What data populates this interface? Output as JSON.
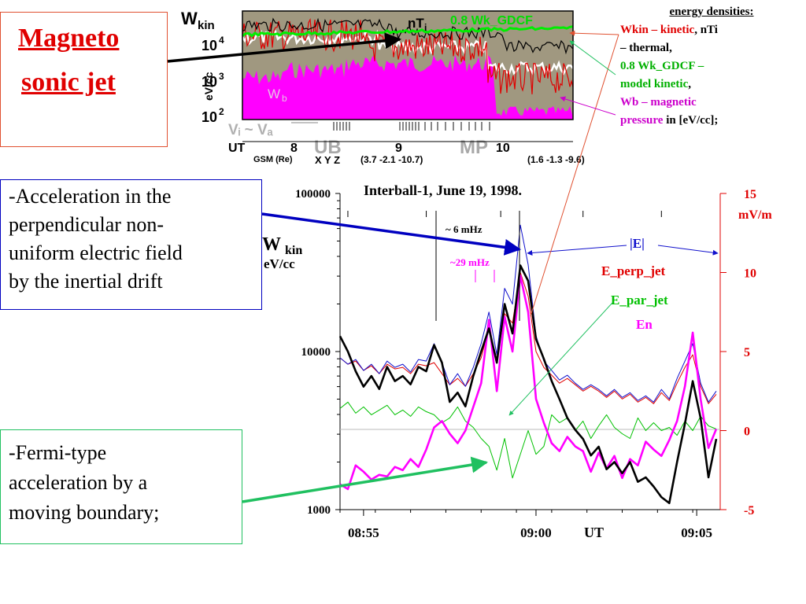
{
  "callouts": {
    "magneto_line1": "Magneto",
    "magneto_line2": "sonic jet",
    "accel_lines": [
      "-Acceleration in the",
      "perpendicular non-",
      "uniform electric field",
      "by the inertial drift"
    ],
    "fermi_lines": [
      "-Fermi-type",
      "acceleration by a",
      "moving boundary;"
    ]
  },
  "legend": {
    "heading": "energy densities:",
    "wkin_label": "Wkin – kinetic",
    "nti_sep": ", nTi",
    "thermal": "– thermal,",
    "gdcf_line1": "0.8 Wk_GDCF –",
    "gdcf_line2": "model kinetic",
    "gdcf_comma": ",",
    "wb_line1": "Wb – magnetic",
    "wb_line2": "pressure",
    "wb_unit": " in [eV/cc];"
  },
  "colors": {
    "kinetic": "#e00000",
    "model": "#00c000",
    "magnetic": "#ff00ff",
    "thermal": "#000000",
    "box_red": "#e05030",
    "box_blue": "#0000c0",
    "box_green": "#20c060",
    "field": "#1010cc"
  },
  "chart_data": [
    {
      "type": "area",
      "y_label": "eV/cc",
      "y_title_main": "W",
      "y_title_sub": "kin",
      "y_scale": "log",
      "y_ticks": [
        {
          "base": "10",
          "exp": "4"
        },
        {
          "base": "10",
          "exp": "3"
        },
        {
          "base": "10",
          "exp": "2"
        }
      ],
      "series_labels": {
        "nti": "nT",
        "nti_sub": "i",
        "gdcf": "0.8 Wk_GDCF",
        "wb": "W",
        "wb_sub": "b"
      },
      "region_label": "Vᵢ ~ Vₐ",
      "ub_label": "UB",
      "mp_label": "MP",
      "ut_axis": {
        "ut_label": "UT",
        "ticks": [
          "8",
          "9",
          "10"
        ]
      },
      "gsm": {
        "label": "GSM (Re)",
        "xyz": "X Y Z",
        "pos1": "(3.7  -2.1  -10.7)",
        "pos2": "(1.6  -1.3  -9.6)"
      }
    },
    {
      "type": "line",
      "title": "Interball-1, June 19, 1998.",
      "ylabel_main": "W",
      "ylabel_sub": "kin",
      "ylabel_unit": "eV/cc",
      "y_scale": "log",
      "ylim": [
        1000,
        100000
      ],
      "y_ticks": [
        "100000",
        "10000",
        "1000"
      ],
      "y2label": "mV/m",
      "y2lim": [
        -5,
        15
      ],
      "y2_ticks": [
        "15",
        "10",
        "5",
        "0",
        "-5"
      ],
      "xlim": [
        0,
        97
      ],
      "x_ticks": [
        {
          "x": 6,
          "label": "08:55"
        },
        {
          "x": 50,
          "label": "09:00"
        },
        {
          "x": 91,
          "label": "09:05"
        }
      ],
      "xlabel": "UT",
      "annotations": {
        "mhz6": "~  6 mHz",
        "mhz29": "~29 mHz",
        "absE": "|E|",
        "eperp": "E_perp_jet",
        "epar": "E_par_jet",
        "en": "En"
      },
      "series": [
        {
          "name": "W_kin",
          "axis": "left",
          "color": "#000000",
          "x": [
            0,
            2,
            4,
            6,
            8,
            10,
            12,
            14,
            16,
            18,
            20,
            22,
            24,
            26,
            28,
            30,
            32,
            34,
            36,
            38,
            40,
            42,
            44,
            46,
            48,
            50,
            52,
            54,
            56,
            58,
            60,
            62,
            64,
            66,
            68,
            70,
            72,
            74,
            76,
            78,
            80,
            82,
            84,
            86,
            88,
            90,
            92,
            94,
            96
          ],
          "y": [
            12500,
            10000,
            7500,
            6000,
            7000,
            5800,
            8000,
            6500,
            7000,
            6200,
            8000,
            7500,
            11000,
            8500,
            4800,
            5500,
            4500,
            7000,
            10000,
            14000,
            8500,
            20000,
            13000,
            35000,
            28000,
            12000,
            9000,
            6500,
            5000,
            3800,
            3200,
            2800,
            2200,
            2500,
            1800,
            2000,
            1700,
            2000,
            1500,
            1600,
            1400,
            1200,
            1100,
            2000,
            3500,
            6500,
            3800,
            1600,
            2800
          ]
        },
        {
          "name": "|E|",
          "axis": "right",
          "color": "#1010cc",
          "x": [
            0,
            2,
            4,
            6,
            8,
            10,
            12,
            14,
            16,
            18,
            20,
            22,
            24,
            26,
            28,
            30,
            32,
            34,
            36,
            38,
            40,
            42,
            44,
            46,
            48,
            50,
            52,
            54,
            56,
            58,
            60,
            62,
            64,
            66,
            68,
            70,
            72,
            74,
            76,
            78,
            80,
            82,
            84,
            86,
            88,
            90,
            92,
            94,
            96
          ],
          "y": [
            4.6,
            4.2,
            4.5,
            3.8,
            4.2,
            3.6,
            4.4,
            4.0,
            4.2,
            3.7,
            4.5,
            4.4,
            5.5,
            4.3,
            2.9,
            3.6,
            2.8,
            4.0,
            5.5,
            7.5,
            4.8,
            9.0,
            8.0,
            13.0,
            10.5,
            6.0,
            4.4,
            3.8,
            3.2,
            3.5,
            3.0,
            2.6,
            2.9,
            2.6,
            2.2,
            2.6,
            2.1,
            2.4,
            1.9,
            2.2,
            1.8,
            2.6,
            2.0,
            3.3,
            4.4,
            5.5,
            3.0,
            1.8,
            2.5
          ]
        },
        {
          "name": "E_perp_jet",
          "axis": "right",
          "color": "#e00000",
          "x": [
            0,
            2,
            4,
            6,
            8,
            10,
            12,
            14,
            16,
            18,
            20,
            22,
            24,
            26,
            28,
            30,
            32,
            34,
            36,
            38,
            40,
            42,
            44,
            46,
            48,
            50,
            52,
            54,
            56,
            58,
            60,
            62,
            64,
            66,
            68,
            70,
            72,
            74,
            76,
            78,
            80,
            82,
            84,
            86,
            88,
            90,
            92,
            94,
            96
          ],
          "y": [
            4.6,
            4.2,
            4.4,
            3.8,
            4.1,
            3.6,
            4.2,
            3.9,
            4.0,
            3.6,
            4.2,
            4.1,
            4.3,
            3.6,
            2.9,
            3.3,
            2.8,
            3.6,
            4.6,
            6.5,
            4.5,
            7.4,
            6.8,
            10.0,
            8.5,
            5.0,
            4.0,
            3.5,
            3.0,
            3.3,
            2.9,
            2.5,
            2.8,
            2.5,
            2.1,
            2.5,
            2.0,
            2.3,
            1.8,
            2.1,
            1.7,
            2.4,
            1.9,
            3.0,
            4.0,
            4.8,
            2.8,
            1.7,
            2.3
          ]
        },
        {
          "name": "E_par_jet",
          "axis": "right",
          "color": "#00c000",
          "x": [
            0,
            2,
            4,
            6,
            8,
            10,
            12,
            14,
            16,
            18,
            20,
            22,
            24,
            26,
            28,
            30,
            32,
            34,
            36,
            38,
            40,
            42,
            44,
            46,
            48,
            50,
            52,
            54,
            56,
            58,
            60,
            62,
            64,
            66,
            68,
            70,
            72,
            74,
            76,
            78,
            80,
            82,
            84,
            86,
            88,
            90,
            92,
            94,
            96
          ],
          "y": [
            1.4,
            1.8,
            1.1,
            1.5,
            1.0,
            1.3,
            1.6,
            1.0,
            1.3,
            0.9,
            1.5,
            1.2,
            1.0,
            0.5,
            0.8,
            1.5,
            0.6,
            0.2,
            -0.5,
            -1.0,
            -2.5,
            -0.5,
            -3.0,
            -1.5,
            0.0,
            -1.5,
            -1.0,
            1.0,
            0.5,
            0.8,
            0.0,
            0.6,
            -0.5,
            0.3,
            1.0,
            0.2,
            -0.2,
            -0.5,
            0.8,
            0.0,
            0.5,
            0.0,
            0.2,
            -0.3,
            0.6,
            0.0,
            0.9,
            0.3,
            0.1
          ]
        },
        {
          "name": "En",
          "axis": "right",
          "color": "#ff00ff",
          "x": [
            0,
            2,
            4,
            6,
            8,
            10,
            12,
            14,
            16,
            18,
            20,
            22,
            24,
            26,
            28,
            30,
            32,
            34,
            36,
            38,
            40,
            42,
            44,
            46,
            48,
            50,
            52,
            54,
            56,
            58,
            60,
            62,
            64,
            66,
            68,
            70,
            72,
            74,
            76,
            78,
            80,
            82,
            84,
            86,
            88,
            90,
            92,
            94,
            96
          ],
          "y": [
            -3.4,
            -3.7,
            -2.2,
            -2.6,
            -3.1,
            -2.8,
            -2.9,
            -2.3,
            -2.5,
            -1.8,
            -2.3,
            -1.2,
            0.2,
            0.6,
            -0.2,
            -0.8,
            0.0,
            1.5,
            3.0,
            7.0,
            2.5,
            7.2,
            5.0,
            9.8,
            7.5,
            2.0,
            0.5,
            -0.8,
            -1.3,
            -0.4,
            -1.0,
            -1.3,
            -2.6,
            -1.4,
            -2.4,
            -1.6,
            -3.0,
            -1.8,
            -2.2,
            -0.7,
            -1.2,
            -1.6,
            -0.6,
            0.6,
            2.8,
            6.2,
            2.0,
            -1.1,
            0.1
          ]
        }
      ]
    }
  ]
}
